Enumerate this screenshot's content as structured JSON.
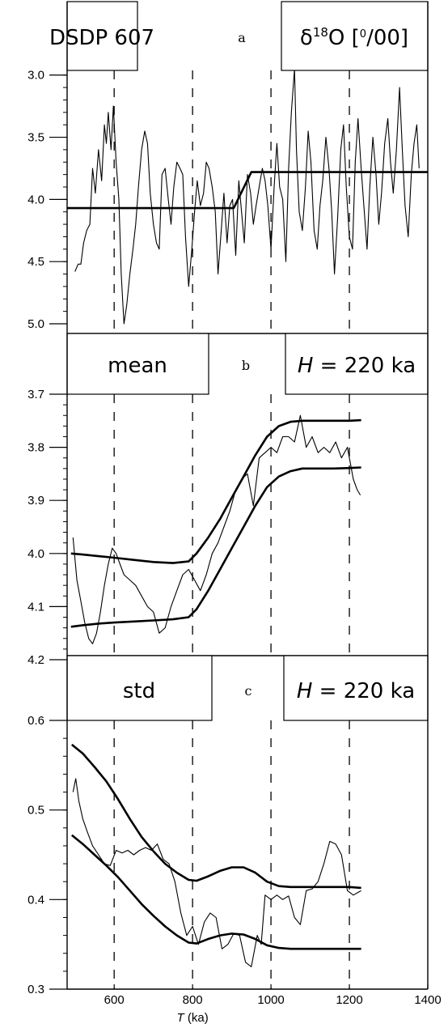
{
  "chart_data": [
    {
      "panel": "a",
      "type": "line",
      "label_left": "DSDP 607",
      "label_right": "δ18O [‰]",
      "label_right_parts": {
        "symbol": "δ",
        "superscript": "18",
        "rest": "O [",
        "unit_sup": "0",
        "unit_rest": "/00]"
      },
      "ylim": [
        5.0,
        2.8
      ],
      "xlim": [
        480,
        1400
      ],
      "y_ticks": [
        3.0,
        3.5,
        4.0,
        4.5,
        5.0
      ],
      "y_tick_labels": [
        "3.0",
        "3.5",
        "4.0",
        "4.5",
        "5.0"
      ],
      "dashed_x": [
        600,
        800,
        1000,
        1200
      ],
      "series": [
        {
          "role": "ramp fit",
          "style": "thick",
          "x": [
            480,
            905,
            950,
            1400
          ],
          "y": [
            4.07,
            4.07,
            3.78,
            3.78
          ]
        },
        {
          "role": "record",
          "style": "thin",
          "x": [
            500,
            508,
            515,
            522,
            530,
            538,
            545,
            552,
            560,
            568,
            575,
            580,
            585,
            592,
            598,
            605,
            612,
            618,
            625,
            632,
            640,
            648,
            655,
            662,
            670,
            678,
            685,
            692,
            700,
            708,
            715,
            722,
            730,
            738,
            745,
            752,
            760,
            768,
            775,
            782,
            790,
            798,
            805,
            812,
            820,
            828,
            835,
            842,
            850,
            858,
            865,
            872,
            880,
            888,
            895,
            902,
            910,
            918,
            925,
            932,
            940,
            948,
            955,
            962,
            970,
            978,
            985,
            992,
            1000,
            1008,
            1015,
            1022,
            1030,
            1038,
            1045,
            1052,
            1060,
            1065,
            1072,
            1080,
            1088,
            1095,
            1102,
            1110,
            1118,
            1125,
            1132,
            1140,
            1148,
            1155,
            1162,
            1170,
            1178,
            1185,
            1192,
            1200,
            1208,
            1215,
            1222,
            1230,
            1238,
            1245,
            1252,
            1260,
            1268,
            1275,
            1282,
            1290,
            1298,
            1305,
            1312,
            1320,
            1328,
            1335,
            1342,
            1350,
            1358,
            1365,
            1372,
            1378
          ],
          "y": [
            4.58,
            4.52,
            4.52,
            4.35,
            4.25,
            4.2,
            3.75,
            3.95,
            3.6,
            3.85,
            3.4,
            3.55,
            3.3,
            3.6,
            3.25,
            3.7,
            4.0,
            4.6,
            5.0,
            4.85,
            4.6,
            4.4,
            4.2,
            3.9,
            3.6,
            3.45,
            3.55,
            3.95,
            4.2,
            4.35,
            4.4,
            3.8,
            3.75,
            4.0,
            4.2,
            3.9,
            3.7,
            3.75,
            3.8,
            4.3,
            4.7,
            4.4,
            4.1,
            3.85,
            4.05,
            3.95,
            3.7,
            3.75,
            3.9,
            4.1,
            4.6,
            4.3,
            3.95,
            4.35,
            4.05,
            4.0,
            4.45,
            3.85,
            4.1,
            4.35,
            3.8,
            3.95,
            4.2,
            4.05,
            3.9,
            3.75,
            3.85,
            4.05,
            4.4,
            3.9,
            3.55,
            3.9,
            4.0,
            4.5,
            3.75,
            3.3,
            2.95,
            3.6,
            4.1,
            4.25,
            3.9,
            3.45,
            3.7,
            4.25,
            4.4,
            4.05,
            3.85,
            3.5,
            3.75,
            4.1,
            4.6,
            4.15,
            3.6,
            3.4,
            3.9,
            4.3,
            4.4,
            3.7,
            3.35,
            3.75,
            4.1,
            4.4,
            3.9,
            3.5,
            3.8,
            4.2,
            3.95,
            3.55,
            3.35,
            3.7,
            3.95,
            3.6,
            3.1,
            3.6,
            4.05,
            4.3,
            3.8,
            3.55,
            3.4,
            3.75
          ]
        }
      ]
    },
    {
      "panel": "b",
      "type": "line",
      "label_left": "mean",
      "label_right": "H = 220 ka",
      "ylim": [
        4.2,
        3.7
      ],
      "xlim": [
        480,
        1400
      ],
      "y_ticks": [
        3.7,
        3.8,
        3.9,
        4.0,
        4.1,
        4.2
      ],
      "y_tick_labels": [
        "3.7",
        "3.8",
        "3.9",
        "4.0",
        "4.1",
        "4.2"
      ],
      "dashed_x": [
        600,
        800,
        1000,
        1200
      ],
      "series": [
        {
          "role": "upper bound",
          "style": "thick",
          "x": [
            490,
            520,
            560,
            600,
            650,
            700,
            750,
            790,
            810,
            840,
            870,
            900,
            930,
            960,
            990,
            1020,
            1050,
            1080,
            1120,
            1160,
            1200,
            1230
          ],
          "y": [
            4.0,
            4.002,
            4.005,
            4.008,
            4.012,
            4.016,
            4.018,
            4.015,
            4.0,
            3.97,
            3.935,
            3.895,
            3.855,
            3.815,
            3.78,
            3.76,
            3.752,
            3.75,
            3.75,
            3.75,
            3.75,
            3.749
          ]
        },
        {
          "role": "lower bound",
          "style": "thick",
          "x": [
            490,
            520,
            560,
            600,
            650,
            700,
            750,
            790,
            810,
            840,
            870,
            900,
            930,
            960,
            990,
            1020,
            1050,
            1080,
            1120,
            1160,
            1200,
            1230
          ],
          "y": [
            4.138,
            4.135,
            4.132,
            4.13,
            4.128,
            4.126,
            4.124,
            4.12,
            4.105,
            4.07,
            4.03,
            3.99,
            3.95,
            3.91,
            3.875,
            3.855,
            3.845,
            3.84,
            3.84,
            3.84,
            3.839,
            3.838
          ]
        },
        {
          "role": "running mean",
          "style": "thin",
          "x": [
            495,
            505,
            515,
            525,
            535,
            545,
            555,
            565,
            575,
            585,
            595,
            605,
            615,
            625,
            640,
            655,
            670,
            685,
            700,
            715,
            730,
            745,
            760,
            775,
            790,
            805,
            820,
            835,
            850,
            865,
            880,
            895,
            910,
            925,
            940,
            955,
            970,
            985,
            1000,
            1015,
            1030,
            1045,
            1060,
            1075,
            1090,
            1105,
            1120,
            1135,
            1150,
            1165,
            1180,
            1195,
            1210,
            1220,
            1228
          ],
          "y": [
            3.97,
            4.05,
            4.09,
            4.13,
            4.16,
            4.17,
            4.15,
            4.11,
            4.06,
            4.02,
            3.99,
            4.0,
            4.02,
            4.04,
            4.05,
            4.06,
            4.08,
            4.1,
            4.11,
            4.15,
            4.14,
            4.1,
            4.07,
            4.04,
            4.03,
            4.05,
            4.07,
            4.04,
            4.0,
            3.98,
            3.95,
            3.92,
            3.88,
            3.86,
            3.85,
            3.91,
            3.82,
            3.81,
            3.8,
            3.81,
            3.78,
            3.78,
            3.79,
            3.74,
            3.8,
            3.78,
            3.81,
            3.8,
            3.81,
            3.79,
            3.82,
            3.8,
            3.86,
            3.88,
            3.89
          ]
        }
      ]
    },
    {
      "panel": "c",
      "type": "line",
      "label_left": "std",
      "label_right": "H = 220 ka",
      "ylim": [
        0.3,
        0.6
      ],
      "xlim": [
        480,
        1400
      ],
      "y_ticks": [
        0.3,
        0.4,
        0.5,
        0.6
      ],
      "y_tick_labels": [
        "0.3",
        "0.4",
        "0.5",
        "0.6"
      ],
      "x_ticks": [
        600,
        800,
        1000,
        1200,
        1400
      ],
      "x_tick_labels": [
        "600",
        "800",
        "1000",
        "1200",
        "1400"
      ],
      "xlabel_var": "T",
      "xlabel_unit": "(ka)",
      "dashed_x": [
        600,
        800,
        1000,
        1200
      ],
      "series": [
        {
          "role": "upper bound",
          "style": "thick",
          "x": [
            492,
            520,
            550,
            580,
            610,
            640,
            670,
            700,
            730,
            760,
            790,
            810,
            840,
            870,
            900,
            930,
            960,
            990,
            1020,
            1050,
            1080,
            1120,
            1160,
            1200,
            1230
          ],
          "y": [
            0.573,
            0.563,
            0.548,
            0.532,
            0.512,
            0.49,
            0.47,
            0.454,
            0.44,
            0.43,
            0.422,
            0.421,
            0.426,
            0.432,
            0.436,
            0.436,
            0.43,
            0.42,
            0.415,
            0.414,
            0.414,
            0.414,
            0.414,
            0.414,
            0.413
          ]
        },
        {
          "role": "lower bound",
          "style": "thick",
          "x": [
            492,
            520,
            550,
            580,
            610,
            640,
            670,
            700,
            730,
            760,
            790,
            810,
            840,
            870,
            900,
            930,
            960,
            990,
            1020,
            1050,
            1080,
            1120,
            1160,
            1200,
            1230
          ],
          "y": [
            0.472,
            0.462,
            0.45,
            0.438,
            0.425,
            0.41,
            0.395,
            0.382,
            0.37,
            0.36,
            0.352,
            0.351,
            0.356,
            0.36,
            0.362,
            0.361,
            0.356,
            0.349,
            0.346,
            0.345,
            0.345,
            0.345,
            0.345,
            0.345,
            0.345
          ]
        },
        {
          "role": "running std",
          "style": "thin",
          "x": [
            495,
            502,
            510,
            520,
            532,
            545,
            560,
            575,
            590,
            605,
            620,
            635,
            650,
            665,
            680,
            695,
            710,
            725,
            740,
            755,
            770,
            785,
            800,
            815,
            830,
            845,
            860,
            875,
            890,
            905,
            920,
            935,
            950,
            965,
            975,
            985,
            1000,
            1015,
            1030,
            1045,
            1060,
            1075,
            1090,
            1105,
            1120,
            1135,
            1150,
            1165,
            1180,
            1195,
            1210,
            1222,
            1230
          ],
          "y": [
            0.52,
            0.535,
            0.51,
            0.49,
            0.475,
            0.46,
            0.45,
            0.44,
            0.438,
            0.455,
            0.452,
            0.455,
            0.45,
            0.455,
            0.458,
            0.455,
            0.462,
            0.445,
            0.44,
            0.42,
            0.385,
            0.36,
            0.37,
            0.35,
            0.375,
            0.385,
            0.38,
            0.345,
            0.35,
            0.362,
            0.36,
            0.33,
            0.325,
            0.36,
            0.35,
            0.405,
            0.4,
            0.405,
            0.4,
            0.404,
            0.38,
            0.372,
            0.41,
            0.412,
            0.42,
            0.44,
            0.465,
            0.462,
            0.45,
            0.41,
            0.405,
            0.408,
            0.41
          ]
        }
      ]
    }
  ]
}
